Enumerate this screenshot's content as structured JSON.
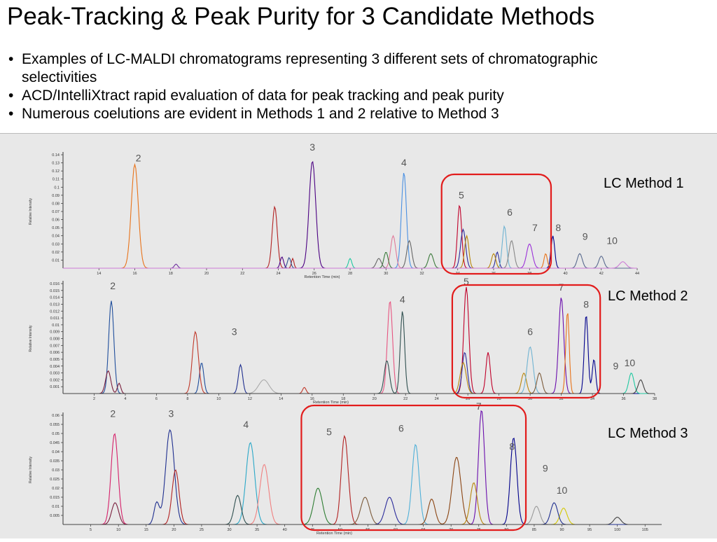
{
  "slide": {
    "title": "Peak-Tracking & Peak Purity for 3 Candidate Methods",
    "bullets": [
      "Examples of LC-MALDI chromatograms representing 3 different sets of chromatographic selectivities",
      "ACD/IntelliXtract rapid evaluation of data for peak tracking and peak purity",
      "Numerous coelutions are evident in Methods 1 and 2 relative to Method 3"
    ]
  },
  "chart_data": [
    {
      "type": "line",
      "panel": "LC Method 1",
      "label": "LC Method 1",
      "xlabel": "Retention Time (min)",
      "ylabel": "Relative Intensity",
      "xlim": [
        12,
        44
      ],
      "ylim": [
        0,
        0.14
      ],
      "x_ticks": [
        14,
        16,
        18,
        20,
        22,
        24,
        26,
        28,
        30,
        32,
        34,
        36,
        38,
        40,
        42,
        44
      ],
      "y_ticks": [
        0.01,
        0.02,
        0.03,
        0.04,
        0.05,
        0.06,
        0.07,
        0.08,
        0.09,
        0.1,
        0.11,
        0.12,
        0.13,
        0.14
      ],
      "peak_labels": [
        {
          "text": "2",
          "x": 16.2,
          "y": 0.132
        },
        {
          "text": "3",
          "x": 25.9,
          "y": 0.145
        },
        {
          "text": "4",
          "x": 31.0,
          "y": 0.126
        },
        {
          "text": "5",
          "x": 34.2,
          "y": 0.086
        },
        {
          "text": "6",
          "x": 36.9,
          "y": 0.065
        },
        {
          "text": "7",
          "x": 38.3,
          "y": 0.046
        },
        {
          "text": "8",
          "x": 39.6,
          "y": 0.046
        },
        {
          "text": "9",
          "x": 41.1,
          "y": 0.035
        },
        {
          "text": "10",
          "x": 42.6,
          "y": 0.03
        }
      ],
      "highlight": {
        "x_range": [
          33.1,
          39.2
        ]
      },
      "series": [
        {
          "color": "#e8731a",
          "peaks": [
            [
              16.0,
              0.128,
              0.42
            ]
          ]
        },
        {
          "color": "#7030a0",
          "peaks": [
            [
              18.3,
              0.005,
              0.2
            ]
          ]
        },
        {
          "color": "#b22222",
          "peaks": [
            [
              23.8,
              0.076,
              0.3
            ],
            [
              24.8,
              0.012,
              0.15
            ]
          ]
        },
        {
          "color": "#4b0082",
          "peaks": [
            [
              25.9,
              0.132,
              0.4
            ],
            [
              24.2,
              0.014,
              0.2
            ]
          ]
        },
        {
          "color": "#2f4f8f",
          "peaks": [
            [
              24.6,
              0.013,
              0.2
            ]
          ]
        },
        {
          "color": "#4a90e2",
          "peaks": [
            [
              31.0,
              0.118,
              0.3
            ]
          ]
        },
        {
          "color": "#1ec8a0",
          "peaks": [
            [
              28.0,
              0.012,
              0.2
            ]
          ]
        },
        {
          "color": "#e07a9a",
          "peaks": [
            [
              30.4,
              0.04,
              0.3
            ]
          ]
        },
        {
          "color": "#3b7a3b",
          "peaks": [
            [
              30.0,
              0.02,
              0.25
            ],
            [
              32.5,
              0.018,
              0.3
            ]
          ]
        },
        {
          "color": "#666666",
          "peaks": [
            [
              31.3,
              0.034,
              0.3
            ],
            [
              29.6,
              0.012,
              0.3
            ]
          ]
        },
        {
          "color": "#c0002a",
          "peaks": [
            [
              34.1,
              0.078,
              0.25
            ]
          ]
        },
        {
          "color": "#2b2b9b",
          "peaks": [
            [
              34.3,
              0.048,
              0.3
            ],
            [
              36.2,
              0.02,
              0.2
            ]
          ]
        },
        {
          "color": "#6fb3d2",
          "peaks": [
            [
              36.6,
              0.052,
              0.25
            ]
          ]
        },
        {
          "color": "#888888",
          "peaks": [
            [
              37.0,
              0.034,
              0.3
            ]
          ]
        },
        {
          "color": "#9b30d9",
          "peaks": [
            [
              38.0,
              0.03,
              0.35
            ]
          ]
        },
        {
          "color": "#00008b",
          "peaks": [
            [
              39.3,
              0.04,
              0.22
            ]
          ]
        },
        {
          "color": "#b8860b",
          "peaks": [
            [
              34.5,
              0.04,
              0.25
            ],
            [
              36.0,
              0.018,
              0.25
            ]
          ]
        },
        {
          "color": "#e8731a",
          "peaks": [
            [
              38.9,
              0.018,
              0.2
            ]
          ]
        },
        {
          "color": "#5a6b8f",
          "peaks": [
            [
              40.8,
              0.018,
              0.3
            ],
            [
              42.0,
              0.015,
              0.3
            ]
          ]
        },
        {
          "color": "#cc7ad6",
          "peaks": [
            [
              43.2,
              0.008,
              0.4
            ]
          ]
        }
      ]
    },
    {
      "type": "line",
      "panel": "LC Method 2",
      "label": "LC Method 2",
      "xlabel": "Retention Time (min)",
      "ylabel": "Relative Intensity",
      "xlim": [
        0,
        38
      ],
      "ylim": [
        0,
        0.016
      ],
      "x_ticks": [
        2,
        4,
        6,
        8,
        10,
        12,
        14,
        16,
        18,
        20,
        22,
        24,
        26,
        28,
        30,
        32,
        34,
        36,
        38
      ],
      "y_ticks": [
        0.001,
        0.002,
        0.003,
        0.004,
        0.005,
        0.006,
        0.007,
        0.008,
        0.009,
        0.01,
        0.011,
        0.012,
        0.013,
        0.014,
        0.015,
        0.016
      ],
      "peak_labels": [
        {
          "text": "2",
          "x": 3.2,
          "y": 0.0152
        },
        {
          "text": "3",
          "x": 11.0,
          "y": 0.0085
        },
        {
          "text": "4",
          "x": 21.8,
          "y": 0.0132
        },
        {
          "text": "5",
          "x": 25.9,
          "y": 0.0158
        },
        {
          "text": "6",
          "x": 30.0,
          "y": 0.0085
        },
        {
          "text": "7",
          "x": 32.0,
          "y": 0.015
        },
        {
          "text": "8",
          "x": 33.6,
          "y": 0.0125
        },
        {
          "text": "9",
          "x": 35.5,
          "y": 0.0035
        },
        {
          "text": "10",
          "x": 36.4,
          "y": 0.004
        }
      ],
      "highlight": {
        "x_range": [
          25.0,
          34.5
        ]
      },
      "series": [
        {
          "color": "#1f4e9c",
          "peaks": [
            [
              3.1,
              0.0135,
              0.3
            ],
            [
              8.9,
              0.0045,
              0.25
            ]
          ]
        },
        {
          "color": "#7a1f3d",
          "peaks": [
            [
              2.9,
              0.0033,
              0.3
            ],
            [
              3.6,
              0.0015,
              0.2
            ]
          ]
        },
        {
          "color": "#c0392b",
          "peaks": [
            [
              8.5,
              0.009,
              0.35
            ],
            [
              15.5,
              0.0009,
              0.2
            ]
          ]
        },
        {
          "color": "#1f2f8f",
          "peaks": [
            [
              11.4,
              0.0042,
              0.25
            ]
          ]
        },
        {
          "color": "#aaaaaa",
          "peaks": [
            [
              12.9,
              0.002,
              0.6
            ]
          ]
        },
        {
          "color": "#e75480",
          "peaks": [
            [
              21.0,
              0.0135,
              0.3
            ]
          ]
        },
        {
          "color": "#2f4f4f",
          "peaks": [
            [
              21.8,
              0.012,
              0.25
            ],
            [
              20.8,
              0.0048,
              0.3
            ]
          ]
        },
        {
          "color": "#c0002a",
          "peaks": [
            [
              25.9,
              0.0155,
              0.3
            ],
            [
              27.3,
              0.006,
              0.25
            ]
          ]
        },
        {
          "color": "#2b2b9b",
          "peaks": [
            [
              25.8,
              0.006,
              0.3
            ]
          ]
        },
        {
          "color": "#b8860b",
          "peaks": [
            [
              25.7,
              0.0045,
              0.35
            ],
            [
              29.6,
              0.003,
              0.3
            ]
          ]
        },
        {
          "color": "#6fb3d2",
          "peaks": [
            [
              30.0,
              0.0068,
              0.35
            ]
          ]
        },
        {
          "color": "#7b5a3a",
          "peaks": [
            [
              30.6,
              0.003,
              0.3
            ]
          ]
        },
        {
          "color": "#6a0dad",
          "peaks": [
            [
              32.0,
              0.014,
              0.3
            ]
          ]
        },
        {
          "color": "#e8731a",
          "peaks": [
            [
              32.4,
              0.012,
              0.2
            ]
          ]
        },
        {
          "color": "#00008b",
          "peaks": [
            [
              33.6,
              0.0115,
              0.22
            ],
            [
              34.1,
              0.005,
              0.2
            ]
          ]
        },
        {
          "color": "#1ec8a0",
          "peaks": [
            [
              36.5,
              0.003,
              0.3
            ]
          ]
        },
        {
          "color": "#444444",
          "peaks": [
            [
              37.1,
              0.002,
              0.3
            ]
          ]
        }
      ]
    },
    {
      "type": "line",
      "panel": "LC Method 3",
      "label": "LC Method 3",
      "xlabel": "Retention Time (min)",
      "ylabel": "Relative Intensity",
      "xlim": [
        0,
        108
      ],
      "ylim": [
        0,
        0.06
      ],
      "x_ticks": [
        5,
        10,
        15,
        20,
        25,
        30,
        35,
        40,
        45,
        50,
        55,
        60,
        65,
        70,
        75,
        80,
        85,
        90,
        95,
        100,
        105
      ],
      "y_ticks": [
        0.005,
        0.01,
        0.015,
        0.02,
        0.025,
        0.03,
        0.035,
        0.04,
        0.045,
        0.05,
        0.055,
        0.06
      ],
      "peak_labels": [
        {
          "text": "2",
          "x": 9.0,
          "y": 0.059
        },
        {
          "text": "3",
          "x": 19.5,
          "y": 0.059
        },
        {
          "text": "4",
          "x": 33.0,
          "y": 0.053
        },
        {
          "text": "5",
          "x": 48.0,
          "y": 0.049
        },
        {
          "text": "6",
          "x": 61.0,
          "y": 0.051
        },
        {
          "text": "7",
          "x": 75.0,
          "y": 0.063
        },
        {
          "text": "8",
          "x": 81.0,
          "y": 0.041
        },
        {
          "text": "9",
          "x": 87.0,
          "y": 0.029
        },
        {
          "text": "10",
          "x": 90.0,
          "y": 0.017
        }
      ],
      "highlight": {
        "x_range": [
          43.0,
          83.5
        ]
      },
      "series": [
        {
          "color": "#d61f69",
          "peaks": [
            [
              9.3,
              0.05,
              0.4
            ]
          ]
        },
        {
          "color": "#7a1f3d",
          "peaks": [
            [
              9.4,
              0.012,
              0.4
            ]
          ]
        },
        {
          "color": "#1f2f8f",
          "peaks": [
            [
              19.3,
              0.052,
              0.5
            ],
            [
              16.9,
              0.012,
              0.3
            ]
          ]
        },
        {
          "color": "#b22222",
          "peaks": [
            [
              20.3,
              0.03,
              0.4
            ]
          ]
        },
        {
          "color": "#2aa8c8",
          "peaks": [
            [
              33.8,
              0.045,
              0.5
            ]
          ]
        },
        {
          "color": "#f08080",
          "peaks": [
            [
              36.3,
              0.033,
              0.5
            ]
          ]
        },
        {
          "color": "#2f4f4f",
          "peaks": [
            [
              31.5,
              0.016,
              0.4
            ]
          ]
        },
        {
          "color": "#2e7d32",
          "peaks": [
            [
              46.0,
              0.02,
              0.5
            ]
          ]
        },
        {
          "color": "#b22222",
          "peaks": [
            [
              50.9,
              0.041,
              0.4
            ],
            [
              50.5,
              0.01,
              0.3
            ]
          ]
        },
        {
          "color": "#7b5a3a",
          "peaks": [
            [
              54.5,
              0.015,
              0.5
            ]
          ]
        },
        {
          "color": "#2b2b9b",
          "peaks": [
            [
              58.9,
              0.015,
              0.5
            ]
          ]
        },
        {
          "color": "#4fb0d8",
          "peaks": [
            [
              63.6,
              0.044,
              0.4
            ]
          ]
        },
        {
          "color": "#8b4513",
          "peaks": [
            [
              66.5,
              0.014,
              0.4
            ],
            [
              71.0,
              0.037,
              0.5
            ]
          ]
        },
        {
          "color": "#6a0dad",
          "peaks": [
            [
              75.5,
              0.063,
              0.35
            ]
          ]
        },
        {
          "color": "#b8860b",
          "peaks": [
            [
              74.1,
              0.023,
              0.4
            ]
          ]
        },
        {
          "color": "#00008b",
          "peaks": [
            [
              81.4,
              0.04,
              0.35
            ],
            [
              80.9,
              0.012,
              0.3
            ]
          ]
        },
        {
          "color": "#999999",
          "peaks": [
            [
              85.4,
              0.01,
              0.4
            ]
          ]
        },
        {
          "color": "#d4c800",
          "peaks": [
            [
              90.3,
              0.009,
              0.4
            ]
          ]
        },
        {
          "color": "#1f2f8f",
          "peaks": [
            [
              88.6,
              0.012,
              0.4
            ]
          ]
        },
        {
          "color": "#444444",
          "peaks": [
            [
              100.0,
              0.004,
              0.4
            ]
          ]
        }
      ]
    }
  ]
}
